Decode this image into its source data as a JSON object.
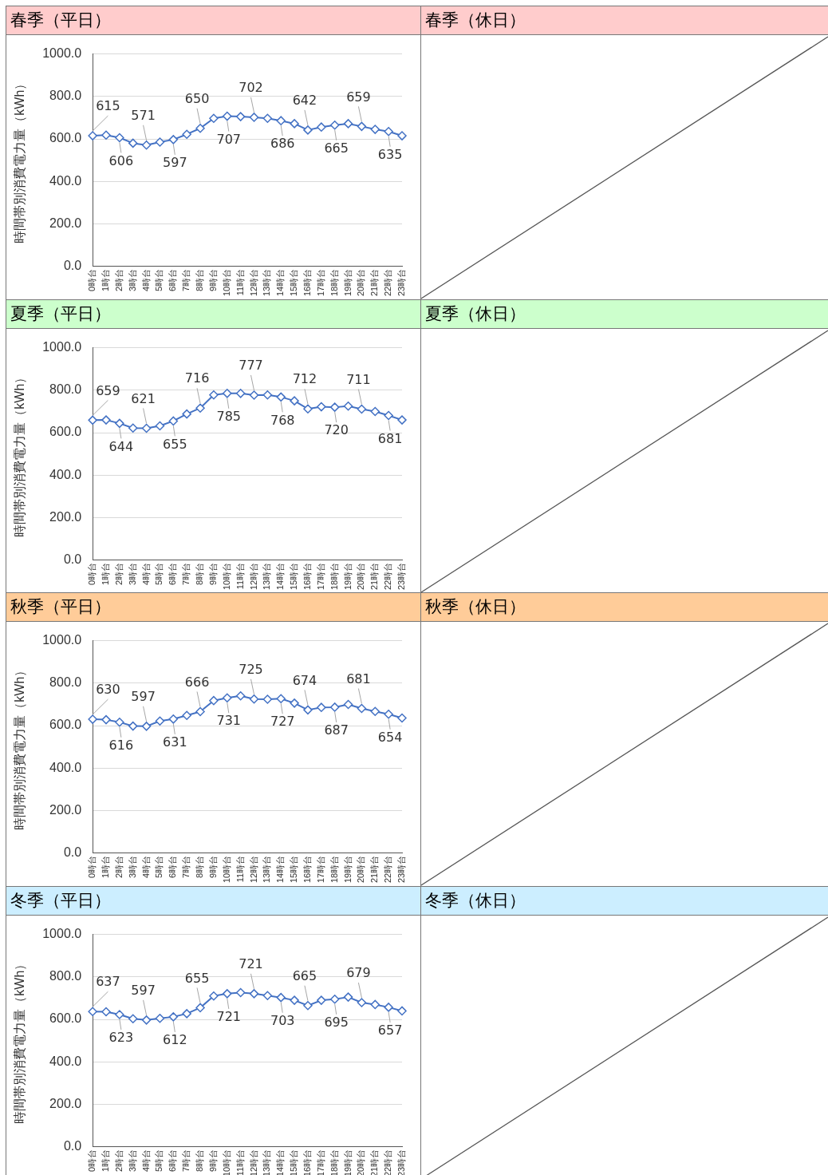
{
  "chart_data": [
    {
      "type": "line",
      "title": "春季（平日）",
      "ylabel": "時間帯別消費電力量（kWh）",
      "categories": [
        "0時台",
        "1時台",
        "2時台",
        "3時台",
        "4時台",
        "5時台",
        "6時台",
        "7時台",
        "8時台",
        "9時台",
        "10時台",
        "11時台",
        "12時台",
        "13時台",
        "14時台",
        "15時台",
        "16時台",
        "17時台",
        "18時台",
        "19時台",
        "20時台",
        "21時台",
        "22時台",
        "23時台"
      ],
      "series": [
        {
          "color": "#4472c4",
          "values": [
            615,
            618,
            606,
            580,
            571,
            585,
            597,
            622,
            650,
            697,
            707,
            705,
            702,
            697,
            686,
            672,
            642,
            656,
            665,
            672,
            659,
            645,
            635,
            615
          ],
          "value_labels": [
            "615",
            null,
            "606",
            null,
            "571",
            null,
            "597",
            null,
            "650",
            null,
            "707",
            null,
            "702",
            null,
            "686",
            null,
            "642",
            null,
            "665",
            null,
            "659",
            null,
            "635",
            null
          ]
        }
      ],
      "ylim": [
        0,
        1000
      ],
      "yticks": [
        {
          "value": 0,
          "label": "0.0"
        },
        {
          "value": 200,
          "label": "200.0"
        },
        {
          "value": 400,
          "label": "400.0"
        },
        {
          "value": 600,
          "label": "600.0"
        },
        {
          "value": 800,
          "label": "800.0"
        },
        {
          "value": 1000,
          "label": "1000.0"
        }
      ],
      "grid": "y",
      "legend": false,
      "marker": "diamond",
      "line_style": "solid"
    },
    {
      "type": "other",
      "title": "春季（休日）"
    },
    {
      "type": "line",
      "title": "夏季（平日）",
      "ylabel": "時間帯別消費電力量（kWh）",
      "categories": [
        "0時台",
        "1時台",
        "2時台",
        "3時台",
        "4時台",
        "5時台",
        "6時台",
        "7時台",
        "8時台",
        "9時台",
        "10時台",
        "11時台",
        "12時台",
        "13時台",
        "14時台",
        "15時台",
        "16時台",
        "17時台",
        "18時台",
        "19時台",
        "20時台",
        "21時台",
        "22時台",
        "23時台"
      ],
      "series": [
        {
          "color": "#4472c4",
          "values": [
            659,
            660,
            644,
            622,
            621,
            632,
            655,
            688,
            716,
            778,
            785,
            785,
            777,
            778,
            768,
            750,
            712,
            722,
            720,
            725,
            711,
            700,
            681,
            660
          ],
          "value_labels": [
            "659",
            null,
            "644",
            null,
            "621",
            null,
            "655",
            null,
            "716",
            null,
            "785",
            null,
            "777",
            null,
            "768",
            null,
            "712",
            null,
            "720",
            null,
            "711",
            null,
            "681",
            null
          ]
        }
      ],
      "ylim": [
        0,
        1000
      ],
      "yticks": [
        {
          "value": 0,
          "label": "0.0"
        },
        {
          "value": 200,
          "label": "200.0"
        },
        {
          "value": 400,
          "label": "400.0"
        },
        {
          "value": 600,
          "label": "600.0"
        },
        {
          "value": 800,
          "label": "800.0"
        },
        {
          "value": 1000,
          "label": "1000.0"
        }
      ],
      "grid": "y",
      "legend": false,
      "marker": "diamond",
      "line_style": "solid"
    },
    {
      "type": "other",
      "title": "夏季（休日）"
    },
    {
      "type": "line",
      "title": "秋季（平日）",
      "ylabel": "時間帯別消費電力量（kWh）",
      "categories": [
        "0時台",
        "1時台",
        "2時台",
        "3時台",
        "4時台",
        "5時台",
        "6時台",
        "7時台",
        "8時台",
        "9時台",
        "10時台",
        "11時台",
        "12時台",
        "13時台",
        "14時台",
        "15時台",
        "16時台",
        "17時台",
        "18時台",
        "19時台",
        "20時台",
        "21時台",
        "22時台",
        "23時台"
      ],
      "series": [
        {
          "color": "#4472c4",
          "values": [
            630,
            628,
            616,
            598,
            597,
            622,
            631,
            648,
            666,
            718,
            731,
            740,
            725,
            724,
            727,
            706,
            674,
            686,
            687,
            700,
            681,
            667,
            654,
            636
          ],
          "value_labels": [
            "630",
            null,
            "616",
            null,
            "597",
            null,
            "631",
            null,
            "666",
            null,
            "731",
            null,
            "725",
            null,
            "727",
            null,
            "674",
            null,
            "687",
            null,
            "681",
            null,
            "654",
            null
          ]
        }
      ],
      "ylim": [
        0,
        1000
      ],
      "yticks": [
        {
          "value": 0,
          "label": "0.0"
        },
        {
          "value": 200,
          "label": "200.0"
        },
        {
          "value": 400,
          "label": "400.0"
        },
        {
          "value": 600,
          "label": "600.0"
        },
        {
          "value": 800,
          "label": "800.0"
        },
        {
          "value": 1000,
          "label": "1000.0"
        }
      ],
      "grid": "y",
      "legend": false,
      "marker": "diamond",
      "line_style": "solid"
    },
    {
      "type": "other",
      "title": "秋季（休日）"
    },
    {
      "type": "line",
      "title": "冬季（平日）",
      "ylabel": "時間帯別消費電力量（kWh）",
      "categories": [
        "0時台",
        "1時台",
        "2時台",
        "3時台",
        "4時台",
        "5時台",
        "6時台",
        "7時台",
        "8時台",
        "9時台",
        "10時台",
        "11時台",
        "12時台",
        "13時台",
        "14時台",
        "15時台",
        "16時台",
        "17時台",
        "18時台",
        "19時台",
        "20時台",
        "21時台",
        "22時台",
        "23時台"
      ],
      "series": [
        {
          "color": "#4472c4",
          "values": [
            637,
            636,
            623,
            603,
            597,
            605,
            612,
            627,
            655,
            710,
            721,
            726,
            721,
            712,
            703,
            690,
            665,
            690,
            695,
            705,
            679,
            670,
            657,
            640
          ],
          "value_labels": [
            "637",
            null,
            "623",
            null,
            "597",
            null,
            "612",
            null,
            "655",
            null,
            "721",
            null,
            "721",
            null,
            "703",
            null,
            "665",
            null,
            "695",
            null,
            "679",
            null,
            "657",
            null
          ]
        }
      ],
      "ylim": [
        0,
        1000
      ],
      "yticks": [
        {
          "value": 0,
          "label": "0.0"
        },
        {
          "value": 200,
          "label": "200.0"
        },
        {
          "value": 400,
          "label": "400.0"
        },
        {
          "value": 600,
          "label": "600.0"
        },
        {
          "value": 800,
          "label": "800.0"
        },
        {
          "value": 1000,
          "label": "1000.0"
        }
      ],
      "grid": "y",
      "legend": false,
      "marker": "diamond",
      "line_style": "solid"
    },
    {
      "type": "other",
      "title": "冬季（休日）"
    }
  ]
}
